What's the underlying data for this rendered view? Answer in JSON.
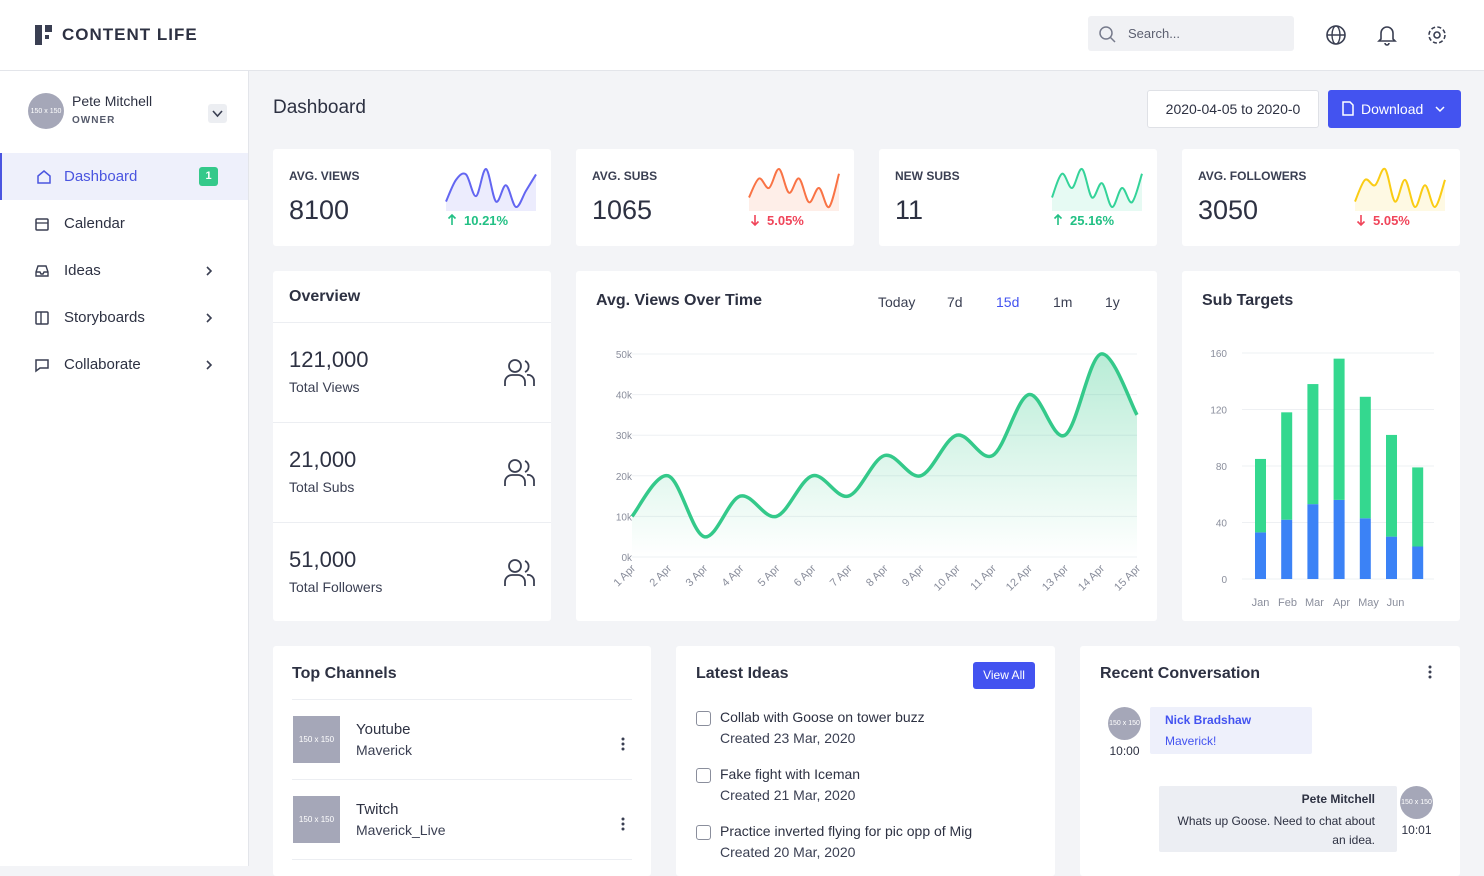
{
  "header": {
    "brand": "CONTENT LIFE",
    "search_placeholder": "Search..."
  },
  "sidebar": {
    "user": {
      "avatar": "150 x 150",
      "name": "Pete Mitchell",
      "role": "OWNER"
    },
    "nav": [
      {
        "label": "Dashboard",
        "badge": "1"
      },
      {
        "label": "Calendar"
      },
      {
        "label": "Ideas"
      },
      {
        "label": "Storyboards"
      },
      {
        "label": "Collaborate"
      }
    ]
  },
  "page": {
    "title": "Dashboard",
    "date_range": "2020-04-05 to 2020-0",
    "download": "Download"
  },
  "stats": [
    {
      "label": "AVG. VIEWS",
      "value": "8100",
      "change": "10.21%",
      "direction": "up",
      "color": "#6366f1",
      "spark": [
        3,
        7,
        8,
        4,
        9,
        3,
        6,
        2,
        5,
        8
      ]
    },
    {
      "label": "AVG. SUBS",
      "value": "1065",
      "change": "5.05%",
      "direction": "down",
      "color": "#f97345",
      "spark": [
        3,
        7,
        5,
        9,
        4,
        7,
        2,
        5,
        1,
        8
      ]
    },
    {
      "label": "NEW SUBS",
      "value": "11",
      "change": "25.16%",
      "direction": "up",
      "color": "#34d399",
      "spark": [
        3,
        8,
        5,
        9,
        3,
        6,
        1,
        5,
        2,
        8
      ]
    },
    {
      "label": "AVG. FOLLOWERS",
      "value": "3050",
      "change": "5.05%",
      "direction": "down",
      "color": "#facc15",
      "spark": [
        3,
        7,
        6,
        9,
        3,
        7,
        2,
        6,
        2,
        7
      ]
    }
  ],
  "overview": {
    "title": "Overview",
    "items": [
      {
        "value": "121,000",
        "label": "Total Views"
      },
      {
        "value": "21,000",
        "label": "Total Subs"
      },
      {
        "value": "51,000",
        "label": "Total Followers"
      }
    ]
  },
  "views_chart": {
    "type": "line",
    "title": "Avg. Views Over Time",
    "ranges": [
      "Today",
      "7d",
      "15d",
      "1m",
      "1y"
    ],
    "active_range": 2,
    "categories": [
      "1 Apr",
      "2 Apr",
      "3 Apr",
      "4 Apr",
      "5 Apr",
      "6 Apr",
      "7 Apr",
      "8 Apr",
      "9 Apr",
      "10 Apr",
      "11 Apr",
      "12 Apr",
      "13 Apr",
      "14 Apr",
      "15 Apr"
    ],
    "values": [
      10000,
      20000,
      5000,
      15000,
      10000,
      20000,
      15000,
      25000,
      20000,
      30000,
      25000,
      40000,
      30000,
      50000,
      35000
    ],
    "color": "#34c98a",
    "ylim": [
      0,
      50000
    ],
    "yticks": [
      {
        "value": 0,
        "label": "0k"
      },
      {
        "value": 10000,
        "label": "10k"
      },
      {
        "value": 20000,
        "label": "20k"
      },
      {
        "value": 30000,
        "label": "30k"
      },
      {
        "value": 40000,
        "label": "40k"
      },
      {
        "value": 50000,
        "label": "50k"
      }
    ],
    "grid": true
  },
  "sub_chart": {
    "type": "stacked-bar",
    "title": "Sub Targets",
    "categories": [
      "Jan",
      "Feb",
      "Mar",
      "Apr",
      "May",
      "Jun",
      null
    ],
    "series": [
      {
        "color": "#3b82f6",
        "values": [
          33,
          42,
          53,
          56,
          43,
          30,
          23
        ]
      },
      {
        "color": "#34d88f",
        "values": [
          52,
          76,
          85,
          100,
          86,
          72,
          56
        ]
      }
    ],
    "ylim": [
      0,
      160
    ],
    "yticks": [
      0,
      40,
      80,
      120,
      160
    ],
    "grid": true
  },
  "channels": {
    "title": "Top Channels",
    "items": [
      {
        "thumb": "150 x 150",
        "name": "Youtube",
        "handle": "Maverick"
      },
      {
        "thumb": "150 x 150",
        "name": "Twitch",
        "handle": "Maverick_Live"
      }
    ]
  },
  "ideas": {
    "title": "Latest Ideas",
    "view_all": "View All",
    "items": [
      {
        "title": "Collab with Goose on tower buzz",
        "created": "Created 23 Mar, 2020"
      },
      {
        "title": "Fake fight with Iceman",
        "created": "Created 21 Mar, 2020"
      },
      {
        "title": "Practice inverted flying for pic opp of Mig",
        "created": "Created 20 Mar, 2020"
      }
    ]
  },
  "conversation": {
    "title": "Recent Conversation",
    "messages": [
      {
        "avatar": "150 x 150",
        "author": "Nick Bradshaw",
        "text": "Maverick!",
        "time": "10:00"
      },
      {
        "avatar": "150 x 150",
        "author": "Pete Mitchell",
        "text": "Whats up Goose. Need to chat about an idea.",
        "time": "10:01"
      }
    ]
  }
}
